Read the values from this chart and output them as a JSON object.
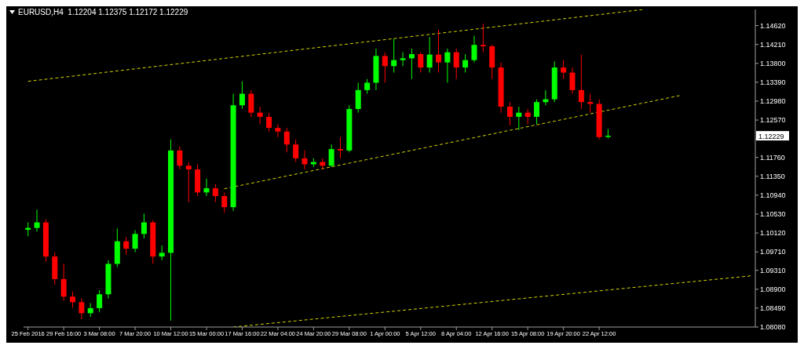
{
  "chart_data": {
    "type": "candlestick",
    "title": "EURUSD,H4  1.12204 1.12375 1.12172 1.12229",
    "categories": [
      "25 Feb 2016",
      null,
      null,
      null,
      "29 Feb 16:00",
      null,
      null,
      null,
      "3 Mar 08:00",
      null,
      null,
      null,
      "7 Mar 20:00",
      null,
      null,
      null,
      "10 Mar 12:00",
      null,
      null,
      null,
      "15 Mar 00:00",
      null,
      null,
      null,
      "17 Mar 16:00",
      null,
      null,
      null,
      "22 Mar 04:00",
      null,
      null,
      null,
      "24 Mar 20:00",
      null,
      null,
      null,
      "29 Mar 08:00",
      null,
      null,
      null,
      "1 Apr 00:00",
      null,
      null,
      null,
      "5 Apr 12:00",
      null,
      null,
      null,
      "8 Apr 04:00",
      null,
      null,
      null,
      "12 Apr 16:00",
      null,
      null,
      null,
      "15 Apr 08:00",
      null,
      null,
      null,
      "19 Apr 20:00",
      null,
      null,
      null,
      "22 Apr 12:00",
      null,
      null,
      null,
      null,
      null,
      null,
      null,
      null,
      null,
      null,
      null,
      null,
      null,
      null,
      null,
      null,
      null
    ],
    "ohlc": [
      [
        1.1019,
        1.1035,
        1.1005,
        1.1023
      ],
      [
        1.1023,
        1.1063,
        1.1015,
        1.1035
      ],
      [
        1.1035,
        1.1042,
        1.095,
        1.0961
      ],
      [
        1.0961,
        1.097,
        1.09,
        1.0912
      ],
      [
        1.0912,
        1.0945,
        1.0865,
        1.0874
      ],
      [
        1.0874,
        1.0885,
        1.085,
        1.0862
      ],
      [
        1.0862,
        1.087,
        1.0825,
        1.0838
      ],
      [
        1.0838,
        1.086,
        1.083,
        1.0849
      ],
      [
        1.0849,
        1.0888,
        1.084,
        1.0879
      ],
      [
        1.0879,
        1.0953,
        1.087,
        1.0945
      ],
      [
        1.0945,
        1.1022,
        1.0938,
        1.0994
      ],
      [
        1.0994,
        1.1003,
        1.0965,
        1.0978
      ],
      [
        1.0978,
        1.1018,
        1.097,
        1.101
      ],
      [
        1.101,
        1.1054,
        1.1,
        1.1035
      ],
      [
        1.1035,
        1.104,
        1.0945,
        1.0961
      ],
      [
        1.0961,
        1.0985,
        1.0953,
        1.0969
      ],
      [
        1.0969,
        1.1215,
        1.0822,
        1.1191
      ],
      [
        1.1191,
        1.12,
        1.115,
        1.1158
      ],
      [
        1.1158,
        1.1166,
        1.1079,
        1.115
      ],
      [
        1.115,
        1.1161,
        1.1092,
        1.11
      ],
      [
        1.11,
        1.113,
        1.1092,
        1.1109
      ],
      [
        1.1109,
        1.1118,
        1.1079,
        1.1092
      ],
      [
        1.1092,
        1.11,
        1.1056,
        1.1068
      ],
      [
        1.1068,
        1.1314,
        1.106,
        1.1289
      ],
      [
        1.1289,
        1.1341,
        1.1281,
        1.1314
      ],
      [
        1.1314,
        1.1322,
        1.1264,
        1.1273
      ],
      [
        1.1273,
        1.1286,
        1.1248,
        1.1264
      ],
      [
        1.1264,
        1.1273,
        1.1232,
        1.124
      ],
      [
        1.124,
        1.1248,
        1.122,
        1.1232
      ],
      [
        1.1232,
        1.124,
        1.1187,
        1.1204
      ],
      [
        1.1204,
        1.1215,
        1.1166,
        1.1174
      ],
      [
        1.1174,
        1.1191,
        1.115,
        1.1161
      ],
      [
        1.1161,
        1.1174,
        1.1155,
        1.1166
      ],
      [
        1.1166,
        1.1174,
        1.115,
        1.1158
      ],
      [
        1.1158,
        1.1204,
        1.1155,
        1.1194
      ],
      [
        1.1194,
        1.122,
        1.1174,
        1.1191
      ],
      [
        1.1191,
        1.1289,
        1.1187,
        1.1281
      ],
      [
        1.1281,
        1.1338,
        1.1273,
        1.1322
      ],
      [
        1.1322,
        1.1346,
        1.1314,
        1.1338
      ],
      [
        1.1338,
        1.1412,
        1.1322,
        1.1396
      ],
      [
        1.1396,
        1.1404,
        1.1338,
        1.1374
      ],
      [
        1.1374,
        1.1433,
        1.136,
        1.1387
      ],
      [
        1.1387,
        1.1404,
        1.1374,
        1.1391
      ],
      [
        1.1391,
        1.1412,
        1.1346,
        1.14
      ],
      [
        1.14,
        1.1404,
        1.136,
        1.1371
      ],
      [
        1.1371,
        1.1437,
        1.136,
        1.1399
      ],
      [
        1.1399,
        1.1453,
        1.136,
        1.1382
      ],
      [
        1.1382,
        1.1412,
        1.1338,
        1.1404
      ],
      [
        1.1404,
        1.1412,
        1.1346,
        1.1371
      ],
      [
        1.1371,
        1.14,
        1.136,
        1.1387
      ],
      [
        1.1387,
        1.144,
        1.1382,
        1.142
      ],
      [
        1.142,
        1.1466,
        1.1404,
        1.1417
      ],
      [
        1.1417,
        1.142,
        1.1346,
        1.1371
      ],
      [
        1.1371,
        1.1382,
        1.1273,
        1.1286
      ],
      [
        1.1286,
        1.1296,
        1.1245,
        1.1264
      ],
      [
        1.1264,
        1.1286,
        1.1235,
        1.1273
      ],
      [
        1.1273,
        1.1281,
        1.1248,
        1.1264
      ],
      [
        1.1264,
        1.1302,
        1.1248,
        1.1296
      ],
      [
        1.1296,
        1.1322,
        1.1289,
        1.1302
      ],
      [
        1.1302,
        1.1384,
        1.1296,
        1.1371
      ],
      [
        1.1371,
        1.1387,
        1.1346,
        1.136
      ],
      [
        1.136,
        1.1371,
        1.1314,
        1.1322
      ],
      [
        1.1322,
        1.1399,
        1.1281,
        1.1296
      ],
      [
        1.1296,
        1.1314,
        1.1273,
        1.1292
      ],
      [
        1.1292,
        1.1302,
        1.1215,
        1.122
      ],
      [
        1.12204,
        1.12375,
        1.12172,
        1.12229
      ],
      null,
      null,
      null,
      null,
      null,
      null,
      null,
      null,
      null,
      null,
      null,
      null,
      null,
      null,
      null,
      null
    ],
    "colors": [
      "#00ff00",
      "#00ff00",
      "#ff0000",
      "#ff0000",
      "#ff0000",
      "#ff0000",
      "#ff0000",
      "#00ff00",
      "#00ff00",
      "#00ff00",
      "#00ff00",
      "#ff0000",
      "#00ff00",
      "#00ff00",
      "#ff0000",
      "#00ff00",
      "#00ff00",
      "#ff0000",
      "#ff0000",
      "#ff0000",
      "#00ff00",
      "#ff0000",
      "#ff0000",
      "#00ff00",
      "#00ff00",
      "#ff0000",
      "#ff0000",
      "#ff0000",
      "#ff0000",
      "#ff0000",
      "#ff0000",
      "#ff0000",
      "#00ff00",
      "#ff0000",
      "#00ff00",
      "#ff0000",
      "#00ff00",
      "#00ff00",
      "#00ff00",
      "#00ff00",
      "#ff0000",
      "#00ff00",
      "#00ff00",
      "#00ff00",
      "#ff0000",
      "#00ff00",
      "#ff0000",
      "#00ff00",
      "#ff0000",
      "#00ff00",
      "#00ff00",
      "#ff0000",
      "#ff0000",
      "#ff0000",
      "#ff0000",
      "#00ff00",
      "#ff0000",
      "#00ff00",
      "#00ff00",
      "#00ff00",
      "#ff0000",
      "#ff0000",
      "#ff0000",
      "#ff0000",
      "#ff0000",
      "#00ff00",
      null,
      null,
      null,
      null,
      null,
      null,
      null,
      null,
      null,
      null,
      null,
      null,
      null,
      null,
      null,
      null
    ],
    "series": [
      {
        "type": "line",
        "color": "#d4d400",
        "line_style": "dashed",
        "values": [
          1.1341,
          null,
          null,
          null,
          null,
          null,
          null,
          null,
          null,
          null,
          null,
          null,
          null,
          null,
          null,
          null,
          null,
          null,
          null,
          null,
          null,
          null,
          null,
          null,
          null,
          null,
          null,
          null,
          null,
          null,
          null,
          null,
          null,
          null,
          null,
          null,
          null,
          null,
          null,
          null,
          null,
          null,
          null,
          null,
          null,
          null,
          null,
          null,
          null,
          null,
          null,
          null,
          null,
          null,
          null,
          null,
          null,
          null,
          null,
          null,
          null,
          null,
          null,
          null,
          null,
          null,
          null,
          null,
          null,
          1.1497,
          null,
          null,
          null,
          null,
          null,
          null,
          null,
          null,
          null,
          null,
          null,
          null
        ]
      },
      {
        "type": "line",
        "color": "#d4d400",
        "line_style": "dashed",
        "values": [
          null,
          null,
          null,
          null,
          null,
          null,
          null,
          null,
          null,
          null,
          null,
          null,
          null,
          null,
          null,
          null,
          null,
          null,
          null,
          null,
          null,
          null,
          1.1108,
          null,
          null,
          null,
          null,
          null,
          null,
          null,
          null,
          null,
          null,
          null,
          null,
          null,
          null,
          null,
          null,
          null,
          null,
          null,
          null,
          null,
          null,
          null,
          null,
          null,
          null,
          null,
          null,
          null,
          null,
          null,
          null,
          null,
          null,
          null,
          null,
          null,
          null,
          null,
          null,
          null,
          null,
          null,
          null,
          null,
          null,
          null,
          null,
          null,
          null,
          1.131,
          null,
          null,
          null,
          null,
          null,
          null,
          null,
          null
        ]
      },
      {
        "type": "line",
        "color": "#d4d400",
        "line_style": "dashed",
        "values": [
          null,
          null,
          null,
          null,
          null,
          null,
          null,
          null,
          null,
          null,
          null,
          null,
          null,
          null,
          null,
          null,
          null,
          null,
          null,
          null,
          null,
          null,
          null,
          1.0808,
          null,
          null,
          null,
          null,
          null,
          null,
          null,
          null,
          null,
          null,
          null,
          null,
          null,
          null,
          null,
          null,
          null,
          null,
          null,
          null,
          null,
          null,
          null,
          null,
          null,
          null,
          null,
          null,
          null,
          null,
          null,
          null,
          null,
          null,
          null,
          null,
          null,
          null,
          null,
          null,
          null,
          null,
          null,
          null,
          null,
          null,
          null,
          null,
          null,
          null,
          null,
          null,
          null,
          null,
          null,
          null,
          null,
          1.0919
        ]
      }
    ],
    "ylim": [
      1.0808,
      1.1497
    ],
    "yticks": [
      {
        "value": 1.0808,
        "label": "1.08080"
      },
      {
        "value": 1.0849,
        "label": "1.08490"
      },
      {
        "value": 1.089,
        "label": "1.08900"
      },
      {
        "value": 1.0931,
        "label": "1.09310"
      },
      {
        "value": 1.0971,
        "label": "1.09710"
      },
      {
        "value": 1.1012,
        "label": "1.10120"
      },
      {
        "value": 1.1053,
        "label": "1.10530"
      },
      {
        "value": 1.1094,
        "label": "1.10940"
      },
      {
        "value": 1.1135,
        "label": "1.11350"
      },
      {
        "value": 1.1176,
        "label": "1.11760"
      },
      {
        "value": 1.1216,
        "label": null
      },
      {
        "value": 1.1257,
        "label": "1.12570"
      },
      {
        "value": 1.1298,
        "label": "1.12980"
      },
      {
        "value": 1.1339,
        "label": "1.13390"
      },
      {
        "value": 1.138,
        "label": "1.13800"
      },
      {
        "value": 1.1421,
        "label": "1.14210"
      },
      {
        "value": 1.1462,
        "label": "1.14620"
      }
    ],
    "annotations": [
      "1.12229"
    ]
  }
}
